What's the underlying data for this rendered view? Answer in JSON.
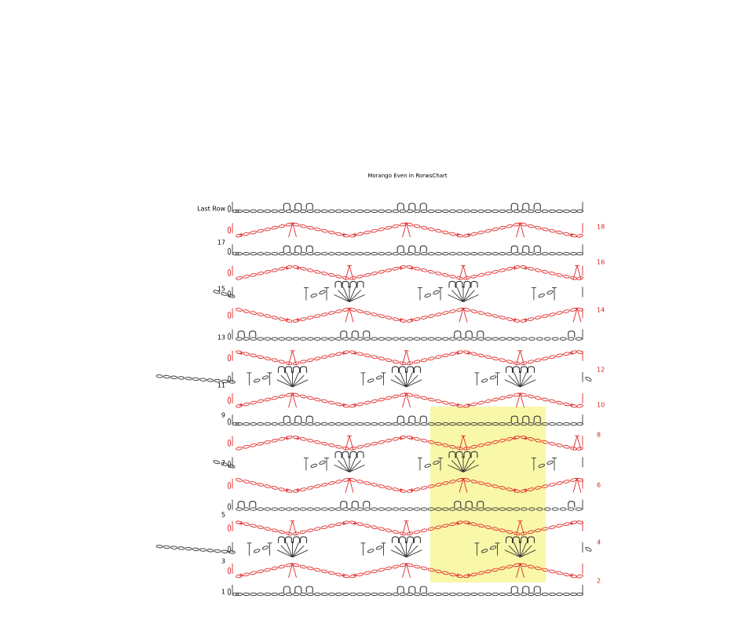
{
  "title": "Morango Even in RorwsChart",
  "left_rows": [
    "Last Row",
    "17",
    "15",
    "13",
    "11",
    "9",
    "7",
    "5",
    "3",
    "1"
  ],
  "right_rows": [
    "18",
    "16",
    "14",
    "12",
    "10",
    "8",
    "6",
    "4",
    "2"
  ]
}
